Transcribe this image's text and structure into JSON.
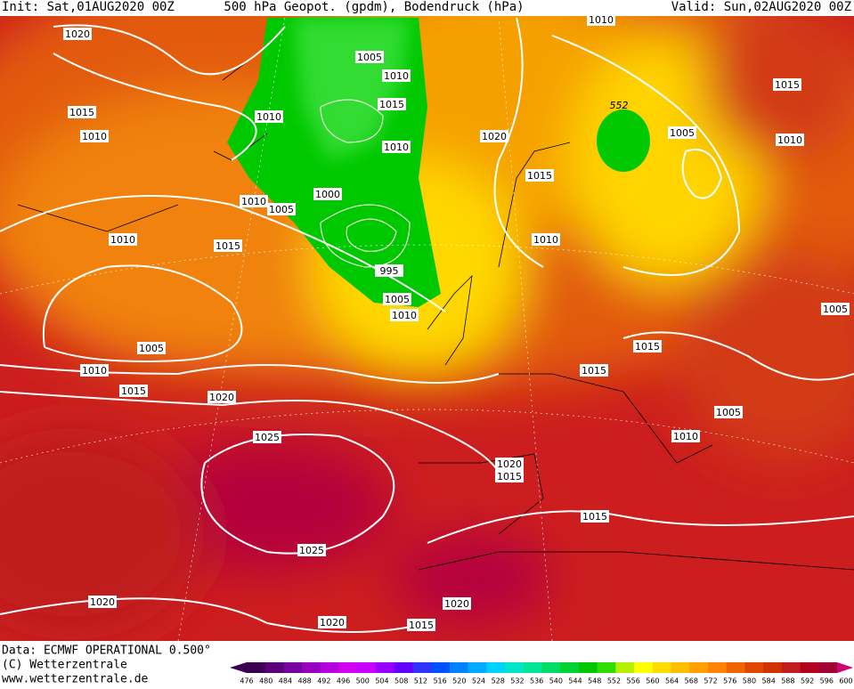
{
  "header": {
    "init": "Init: Sat,01AUG2020 00Z",
    "title": "500 hPa Geopot. (gpdm), Bodendruck (hPa)",
    "valid": "Valid: Sun,02AUG2020 00Z"
  },
  "isobar_labels": [
    1020,
    1005,
    1010,
    1010,
    1015,
    1010,
    1015,
    552,
    1015,
    1010,
    1020,
    1005,
    1010,
    1010,
    1015,
    1000,
    1010,
    1005,
    1010,
    1015,
    1010,
    995,
    1005,
    1010,
    1005,
    1005,
    1015,
    1010,
    1015,
    1015,
    1020,
    1005,
    1010,
    1025,
    1020,
    1015,
    1015,
    1025,
    1020,
    1020,
    1020,
    1015
  ],
  "footer": {
    "data": "Data: ECMWF OPERATIONAL 0.500°",
    "copyright": "(C) Wetterzentrale",
    "url": "www.wetterzentrale.de"
  },
  "colorbar": {
    "ticks": [
      476,
      480,
      484,
      488,
      492,
      496,
      500,
      504,
      508,
      512,
      516,
      520,
      524,
      528,
      532,
      536,
      540,
      544,
      548,
      552,
      556,
      560,
      564,
      568,
      572,
      576,
      580,
      584,
      588,
      592,
      596,
      600
    ],
    "colors": [
      "#3c0050",
      "#5a0078",
      "#7800a0",
      "#9600be",
      "#b400dc",
      "#d200f0",
      "#c800ff",
      "#9600ff",
      "#6400ff",
      "#3232ff",
      "#0050ff",
      "#0082ff",
      "#00aaff",
      "#00d2ff",
      "#00e6c8",
      "#00e696",
      "#00dc64",
      "#00d232",
      "#00c800",
      "#32dc00",
      "#b4f000",
      "#ffff00",
      "#ffdc00",
      "#ffbe00",
      "#ffa000",
      "#ff8200",
      "#f06400",
      "#e04600",
      "#d23200",
      "#c01e1e",
      "#b4001e",
      "#a00032"
    ]
  }
}
